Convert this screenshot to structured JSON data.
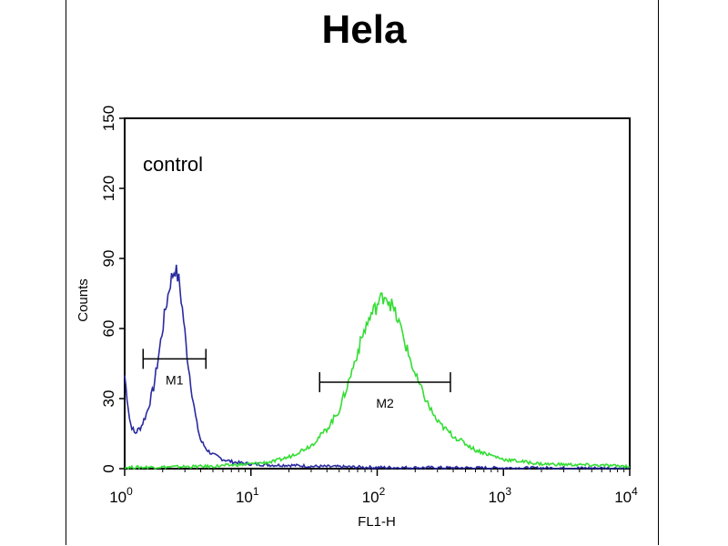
{
  "chart_data": {
    "type": "line",
    "title": "Hela",
    "xlabel": "FL1-H",
    "ylabel": "Counts",
    "xscale": "log",
    "xlim": [
      1,
      10000
    ],
    "ylim": [
      0,
      150
    ],
    "yticks": [
      "0",
      "30",
      "60",
      "90",
      "120",
      "150"
    ],
    "xticks": [
      {
        "base": "10",
        "exp": "0"
      },
      {
        "base": "10",
        "exp": "1"
      },
      {
        "base": "10",
        "exp": "2"
      },
      {
        "base": "10",
        "exp": "3"
      },
      {
        "base": "10",
        "exp": "4"
      }
    ],
    "annotation": "control",
    "grid": false,
    "series": [
      {
        "color": "#2a2aa0",
        "x": [
          1.0,
          1.1,
          1.2,
          1.35,
          1.5,
          1.7,
          1.9,
          2.1,
          2.3,
          2.5,
          2.7,
          2.9,
          3.1,
          3.4,
          3.7,
          4.0,
          4.5,
          5.0,
          6.0,
          7.0,
          8.0,
          10.0,
          15.0,
          20.0,
          30.0,
          50.0,
          100.0,
          1000.0,
          10000.0
        ],
        "y": [
          40,
          20,
          15,
          18,
          24,
          35,
          52,
          68,
          80,
          86,
          80,
          66,
          50,
          33,
          20,
          12,
          8,
          6,
          4,
          3,
          2.5,
          2,
          1.5,
          1.5,
          1,
          0.8,
          0.5,
          0.3,
          0.2
        ]
      },
      {
        "color": "#33dd33",
        "x": [
          1.0,
          5.0,
          10.0,
          15.0,
          20.0,
          30.0,
          40.0,
          50.0,
          60.0,
          70.0,
          80.0,
          90.0,
          100.0,
          115.0,
          130.0,
          150.0,
          170.0,
          200.0,
          250.0,
          300.0,
          400.0,
          600.0,
          1000.0,
          2000.0,
          5000.0,
          10000.0
        ],
        "y": [
          0.5,
          1,
          2,
          3,
          5,
          10,
          17,
          25,
          38,
          50,
          60,
          66,
          70,
          75,
          70,
          62,
          52,
          40,
          28,
          20,
          14,
          8,
          4,
          2,
          1.5,
          1
        ]
      }
    ],
    "markers": [
      {
        "label": "M1",
        "x_range": [
          1.4,
          4.4
        ],
        "y": 47
      },
      {
        "label": "M2",
        "x_range": [
          35,
          380
        ],
        "y": 37
      }
    ]
  }
}
